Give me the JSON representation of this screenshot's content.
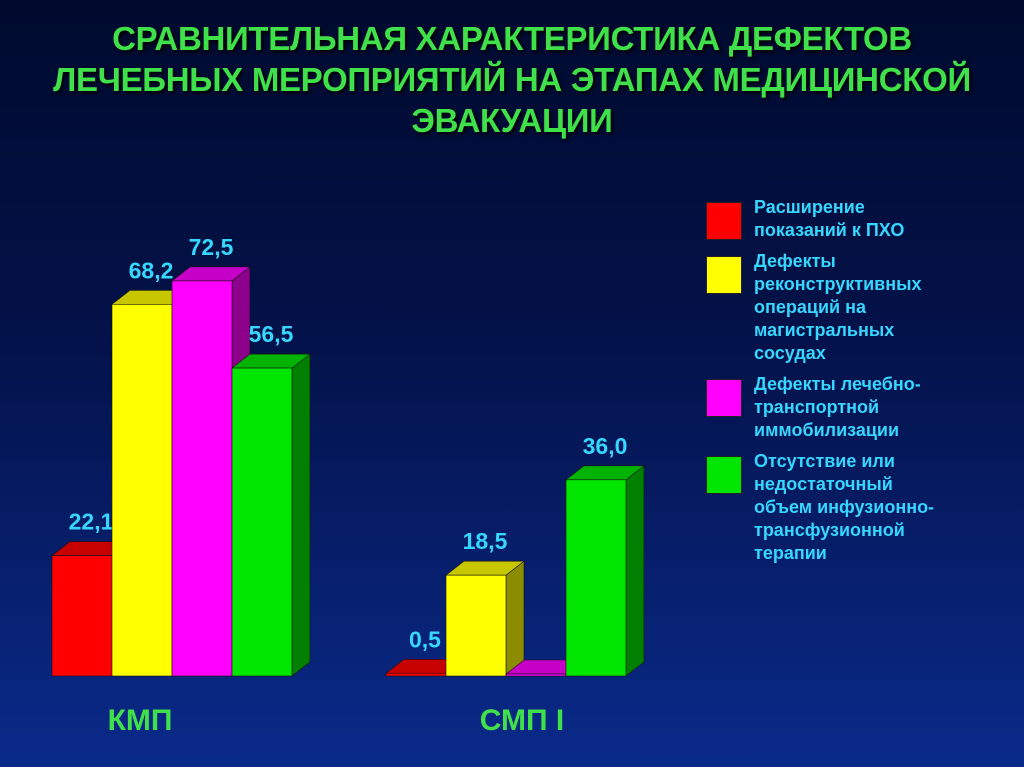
{
  "title_lines": [
    "СРАВНИТЕЛЬНАЯ ХАРАКТЕРИСТИКА ДЕФЕКТОВ",
    "ЛЕЧЕБНЫХ МЕРОПРИЯТИЙ НА ЭТАПАХ МЕДИЦИНСКОЙ",
    "ЭВАКУАЦИИ"
  ],
  "legend": [
    {
      "lines": [
        "Расширение",
        "показаний к ПХО"
      ],
      "color": "#ff0000"
    },
    {
      "lines": [
        "Дефекты",
        "реконструктивных",
        "операций на",
        "магистральных",
        "сосудах"
      ],
      "color": "#ffff00"
    },
    {
      "lines": [
        "Дефекты лечебно-",
        "транспортной",
        "иммобилизации"
      ],
      "color": "#ff00ff"
    },
    {
      "lines": [
        "Отсутствие или",
        "недостаточный",
        "объем инфузионно-",
        "трансфузионной",
        "терапии"
      ],
      "color": "#00e600"
    }
  ],
  "chart_data": {
    "type": "bar",
    "categories": [
      "КМП",
      "СМП I"
    ],
    "series": [
      {
        "name": "Расширение показаний к ПХО",
        "values": [
          22.1,
          0.5
        ],
        "labels": [
          "22,1",
          "0,5"
        ],
        "color": "#ff0000"
      },
      {
        "name": "Дефекты реконструктивных операций на магистральных сосудах",
        "values": [
          68.2,
          18.5
        ],
        "labels": [
          "68,2",
          "18,5"
        ],
        "color": "#ffff00"
      },
      {
        "name": "Дефекты лечебно-транспортной иммобилизации",
        "values": [
          72.5,
          0
        ],
        "labels": [
          "72,5",
          ""
        ],
        "color": "#ff00ff"
      },
      {
        "name": "Отсутствие или недостаточный объем инфузионно-трансфузионной терапии",
        "values": [
          56.5,
          36.0
        ],
        "labels": [
          "56,5",
          "36,0"
        ],
        "color": "#00e600"
      }
    ],
    "grid": false,
    "legend_position": "right"
  }
}
